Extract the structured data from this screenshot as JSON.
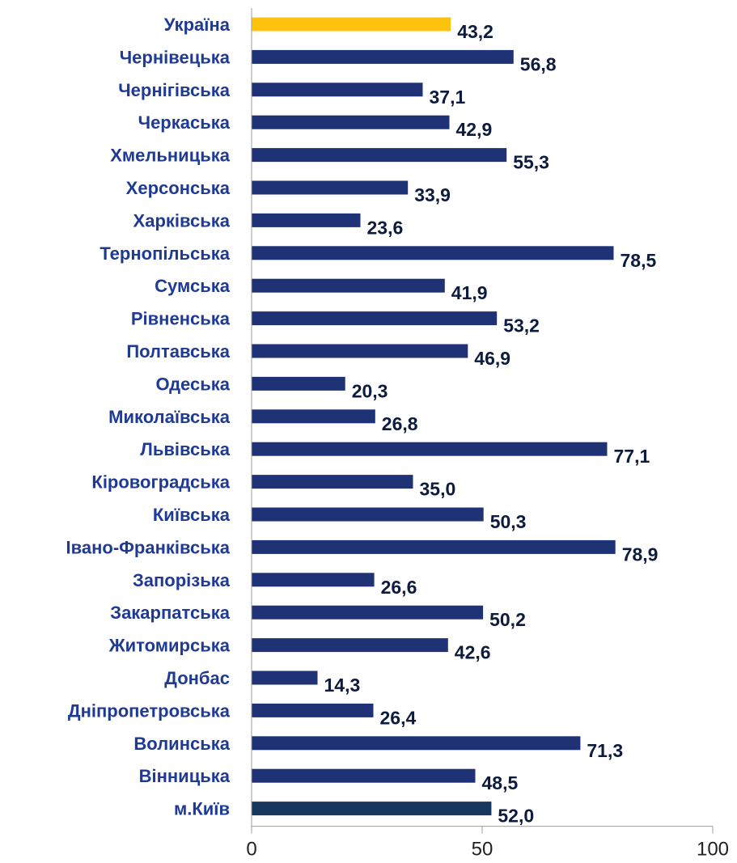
{
  "chart_data": {
    "type": "bar",
    "orientation": "horizontal",
    "categories": [
      "Україна",
      "Чернівецька",
      "Чернігівська",
      "Черкаська",
      "Хмельницька",
      "Херсонська",
      "Харківська",
      "Тернопільська",
      "Сумська",
      "Рівненська",
      "Полтавська",
      "Одеська",
      "Миколаївська",
      "Львівська",
      "Кіровоградська",
      "Київська",
      "Івано-Франківська",
      "Запорізька",
      "Закарпатська",
      "Житомирська",
      "Донбас",
      "Дніпропетровська",
      "Волинська",
      "Вінницька",
      "м.Київ"
    ],
    "values": [
      43.2,
      56.8,
      37.1,
      42.9,
      55.3,
      33.9,
      23.6,
      78.5,
      41.9,
      53.2,
      46.9,
      20.3,
      26.8,
      77.1,
      35.0,
      50.3,
      78.9,
      26.6,
      50.2,
      42.6,
      14.3,
      26.4,
      71.3,
      48.5,
      52.0
    ],
    "value_labels": [
      "43,2",
      "56,8",
      "37,1",
      "42,9",
      "55,3",
      "33,9",
      "23,6",
      "78,5",
      "41,9",
      "53,2",
      "46,9",
      "20,3",
      "26,8",
      "77,1",
      "35,0",
      "50,3",
      "78,9",
      "26,6",
      "50,2",
      "42,6",
      "14,3",
      "26,4",
      "71,3",
      "48,5",
      "52,0"
    ],
    "xlim": [
      0,
      100
    ],
    "x_ticks": [
      0,
      50,
      100
    ],
    "grid": false,
    "colors": {
      "highlight": "#FFC20E",
      "bar": "#1F3275",
      "last_bar": "#17375E",
      "category_text": "#1F3A93",
      "value_text": "#0D1B3E",
      "axis": "#9E9E9E"
    }
  }
}
